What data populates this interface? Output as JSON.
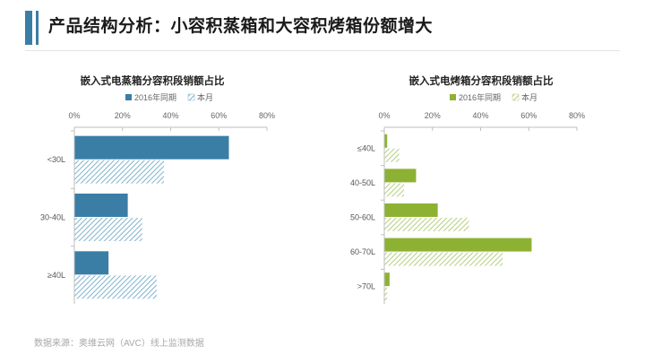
{
  "page": {
    "title": "产品结构分析：小容积蒸箱和大容积烤箱份额增大",
    "source": "数据来源：奥维云网（AVC）线上监测数据",
    "accent_color": "#3a7ea6"
  },
  "chart_data": [
    {
      "type": "bar",
      "orientation": "horizontal",
      "title": "嵌入式电蒸箱分容积段销额占比",
      "categories": [
        "<30L",
        "30-40L",
        "≥40L"
      ],
      "series": [
        {
          "name": "2016年同期",
          "values": [
            64,
            22,
            14
          ],
          "color": "#3a7ea6",
          "pattern": "solid"
        },
        {
          "name": "本月",
          "values": [
            37,
            28,
            34
          ],
          "color": "#7fb3cc",
          "pattern": "hatched"
        }
      ],
      "xlim": [
        0,
        80
      ],
      "ticks": [
        "0%",
        "20%",
        "40%",
        "60%",
        "80%"
      ],
      "tick_values": [
        0,
        20,
        40,
        60,
        80
      ],
      "legend_position": "top"
    },
    {
      "type": "bar",
      "orientation": "horizontal",
      "title": "嵌入式电烤箱分容积段销额占比",
      "categories": [
        "≤40L",
        "40-50L",
        "50-60L",
        "60-70L",
        ">70L"
      ],
      "series": [
        {
          "name": "2016年同期",
          "values": [
            1,
            13,
            22,
            61,
            2
          ],
          "color": "#8db233",
          "pattern": "solid"
        },
        {
          "name": "本月",
          "values": [
            6,
            8,
            35,
            49,
            1
          ],
          "color": "#b5cf7e",
          "pattern": "hatched"
        }
      ],
      "xlim": [
        0,
        80
      ],
      "ticks": [
        "0%",
        "20%",
        "40%",
        "60%",
        "80%"
      ],
      "tick_values": [
        0,
        20,
        40,
        60,
        80
      ],
      "legend_position": "top"
    }
  ]
}
